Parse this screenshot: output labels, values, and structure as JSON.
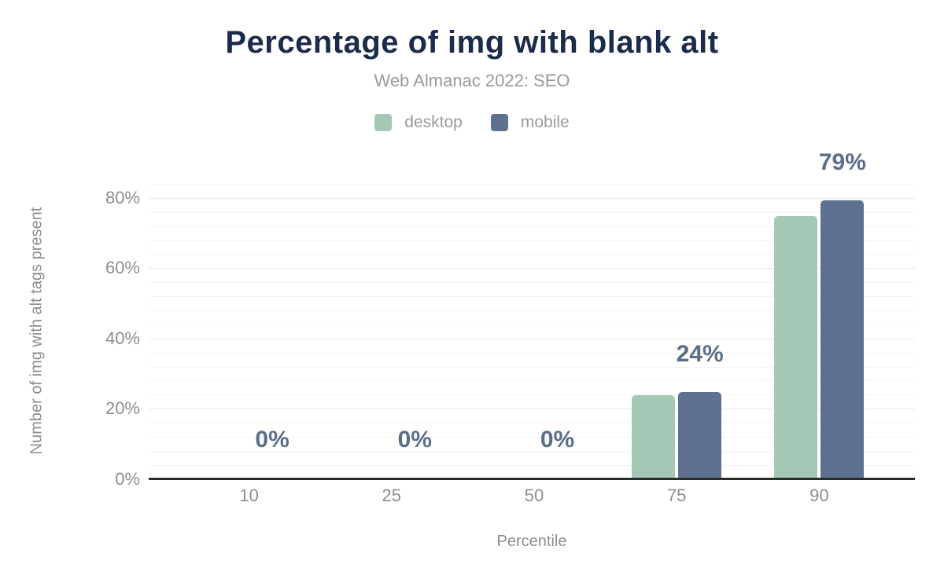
{
  "figure": {
    "title": "Percentage of img with blank alt",
    "subtitle": "Web Almanac 2022: SEO"
  },
  "chart_data": {
    "type": "bar",
    "title": "Percentage of img with blank alt",
    "subtitle": "Web Almanac 2022: SEO",
    "categories": [
      "10",
      "25",
      "50",
      "75",
      "90"
    ],
    "series": [
      {
        "name": "desktop",
        "color": "#a4c8b6",
        "values": [
          0,
          0,
          0,
          23.5,
          74.5
        ]
      },
      {
        "name": "mobile",
        "color": "#5f7190",
        "values": [
          0,
          0,
          0,
          24.3,
          79
        ]
      }
    ],
    "value_labels": [
      "0%",
      "0%",
      "0%",
      "24%",
      "79%"
    ],
    "value_labels_on_series": "mobile",
    "xlabel": "Percentile",
    "ylabel": "Number of img with alt tags present",
    "yticks": [
      0,
      20,
      40,
      60,
      80
    ],
    "ytick_labels": [
      "0%",
      "20%",
      "40%",
      "60%",
      "80%"
    ],
    "ylim": [
      0,
      84.4
    ],
    "grid": {
      "minor_step": 4,
      "major_step": 20,
      "minor_on": true
    },
    "legend_position": "top"
  },
  "colors": {
    "title": "#1b2b4b",
    "subtitle": "#9a9a9a",
    "tick_text": "#8e8e8e",
    "value_label": "#5b6d8a",
    "axis_line": "#2b2b2b",
    "grid_minor": "#f4f4f4",
    "grid_major": "#e8e8e8",
    "desktop": "#a4c8b6",
    "mobile": "#5f7190"
  }
}
